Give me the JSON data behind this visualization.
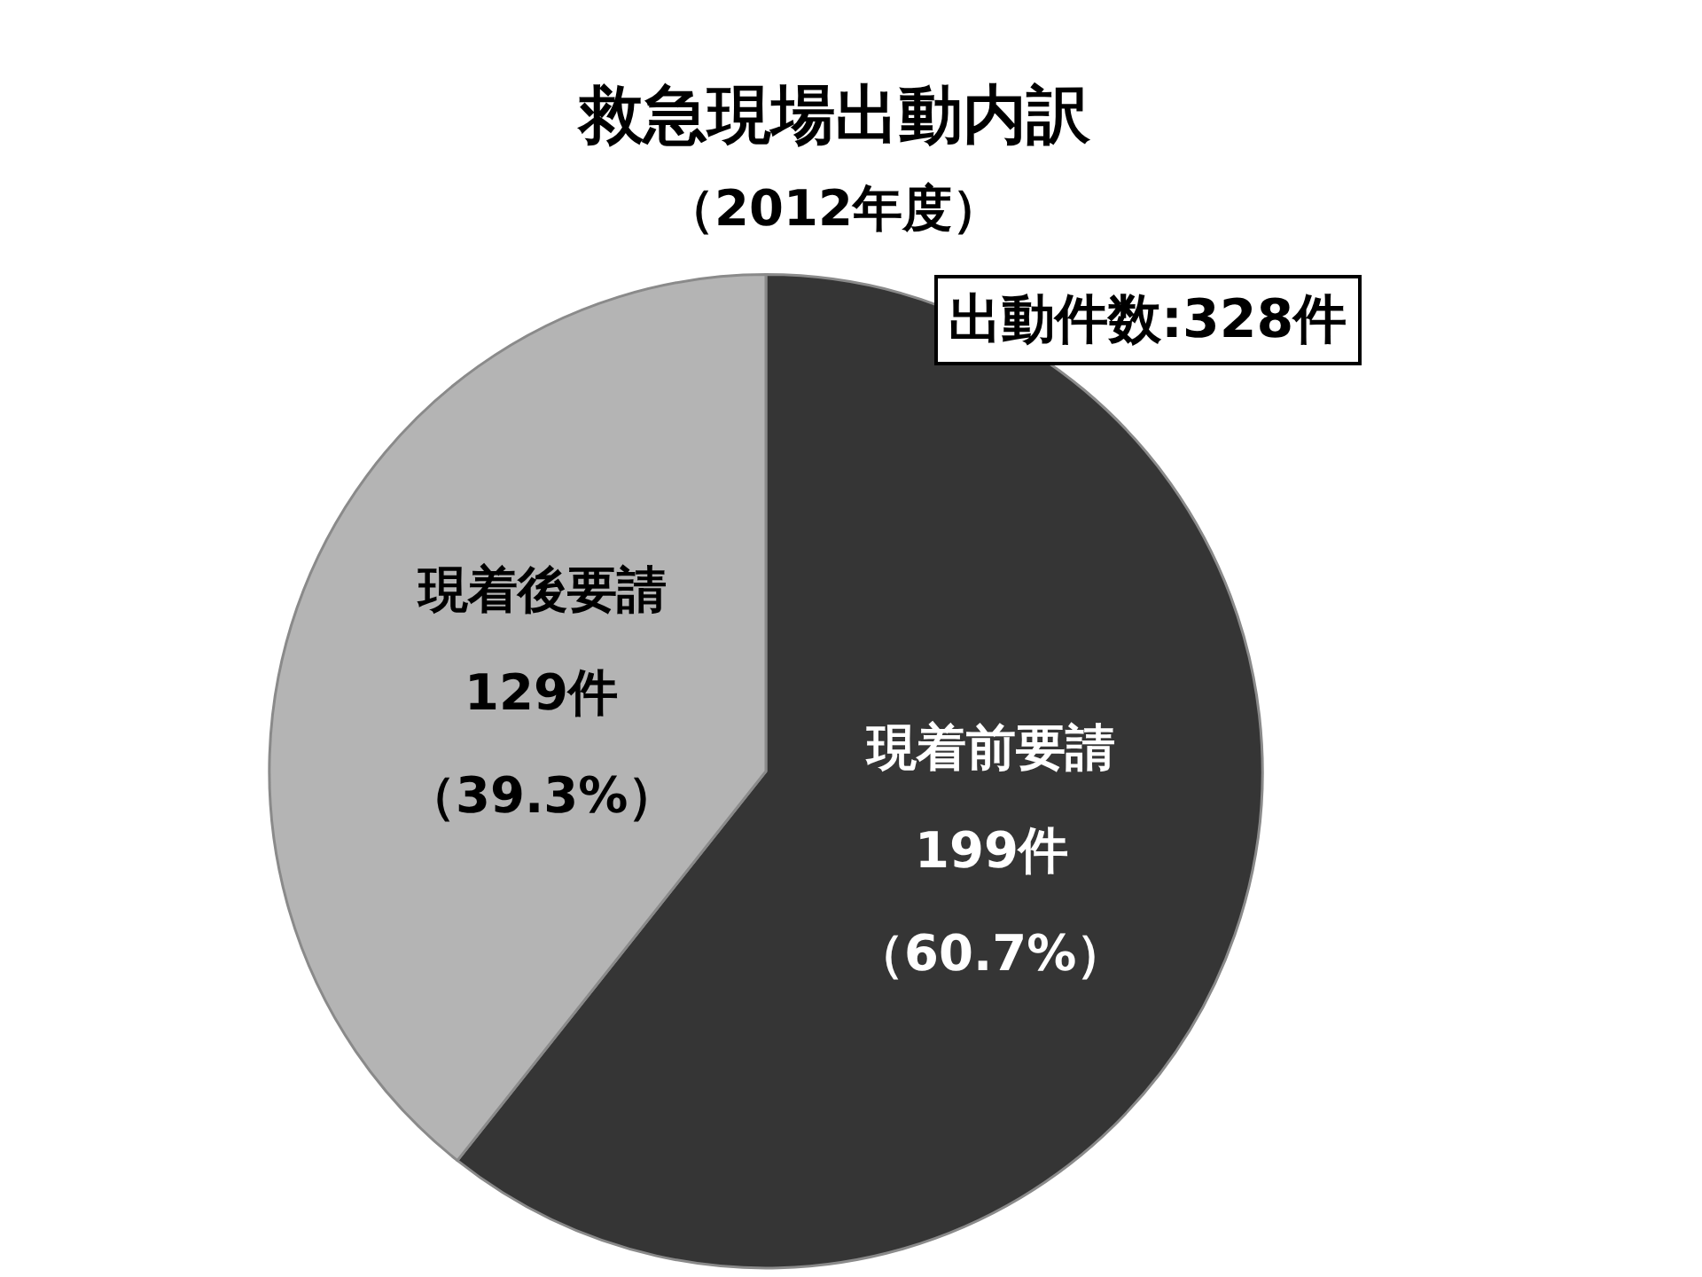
{
  "chart_data": {
    "type": "pie",
    "title": "救急現場出動内訳",
    "subtitle": "（2012年度）",
    "categories": [
      "現着前要請",
      "現着後要請"
    ],
    "values": [
      199,
      129
    ],
    "colors": [
      "#353535",
      "#b4b4b4"
    ],
    "value_labels": [
      "199件",
      "129件"
    ],
    "annotations": [
      {
        "text": "（60.7%）",
        "x": "現着前要請"
      },
      {
        "text": "（39.3%）",
        "x": "現着後要請"
      },
      "出動件数:328件"
    ],
    "legend": false
  }
}
